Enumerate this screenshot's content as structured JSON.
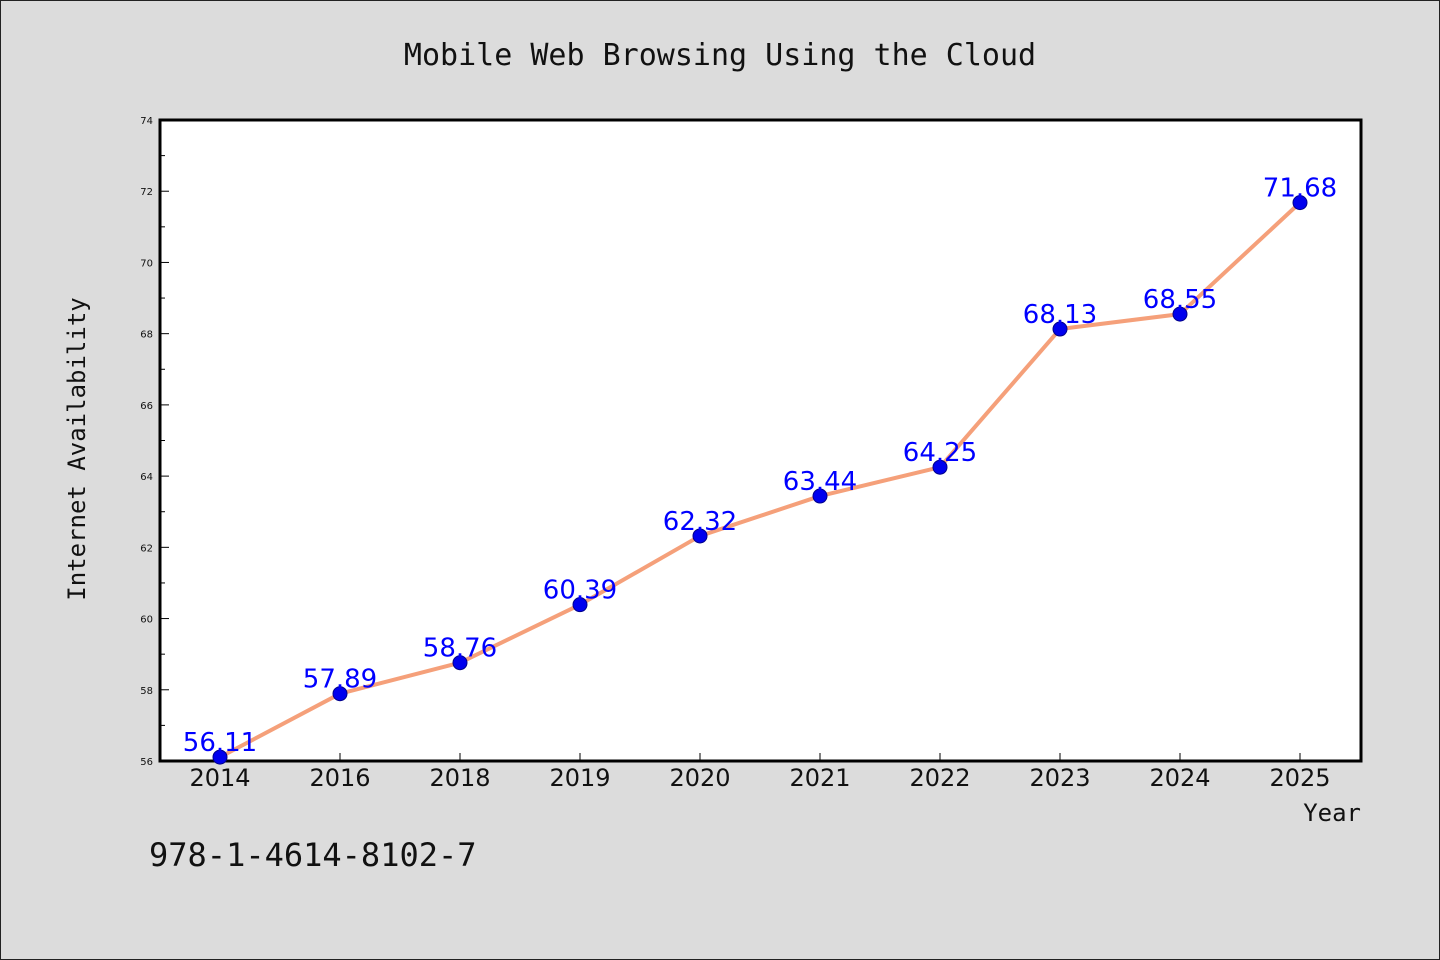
{
  "chart_data": {
    "type": "line",
    "title": "Mobile Web Browsing Using the Cloud",
    "xlabel": "Year",
    "ylabel": "Internet Availability",
    "categories": [
      "2014",
      "2016",
      "2018",
      "2019",
      "2020",
      "2021",
      "2022",
      "2023",
      "2024",
      "2025"
    ],
    "series": [
      {
        "values": [
          56.11,
          57.89,
          58.76,
          60.39,
          62.32,
          63.44,
          64.25,
          68.13,
          68.55,
          71.68
        ]
      }
    ],
    "data_labels": [
      "56.11",
      "57.89",
      "58.76",
      "60.39",
      "62.32",
      "63.44",
      "64.25",
      "68.13",
      "68.55",
      "71.68"
    ],
    "ylim": [
      56,
      74
    ],
    "yticks": [
      "56",
      "58",
      "60",
      "62",
      "64",
      "66",
      "68",
      "70",
      "72",
      "74"
    ],
    "grid": false,
    "legend": "none",
    "colors": {
      "line": "#f5a07a",
      "marker": "#0000ee",
      "label": "#0000ff",
      "plot_background": "#ffffff",
      "figure_background": "#dcdcdc"
    }
  },
  "annotation": {
    "text": "978-1-4614-8102-7"
  }
}
